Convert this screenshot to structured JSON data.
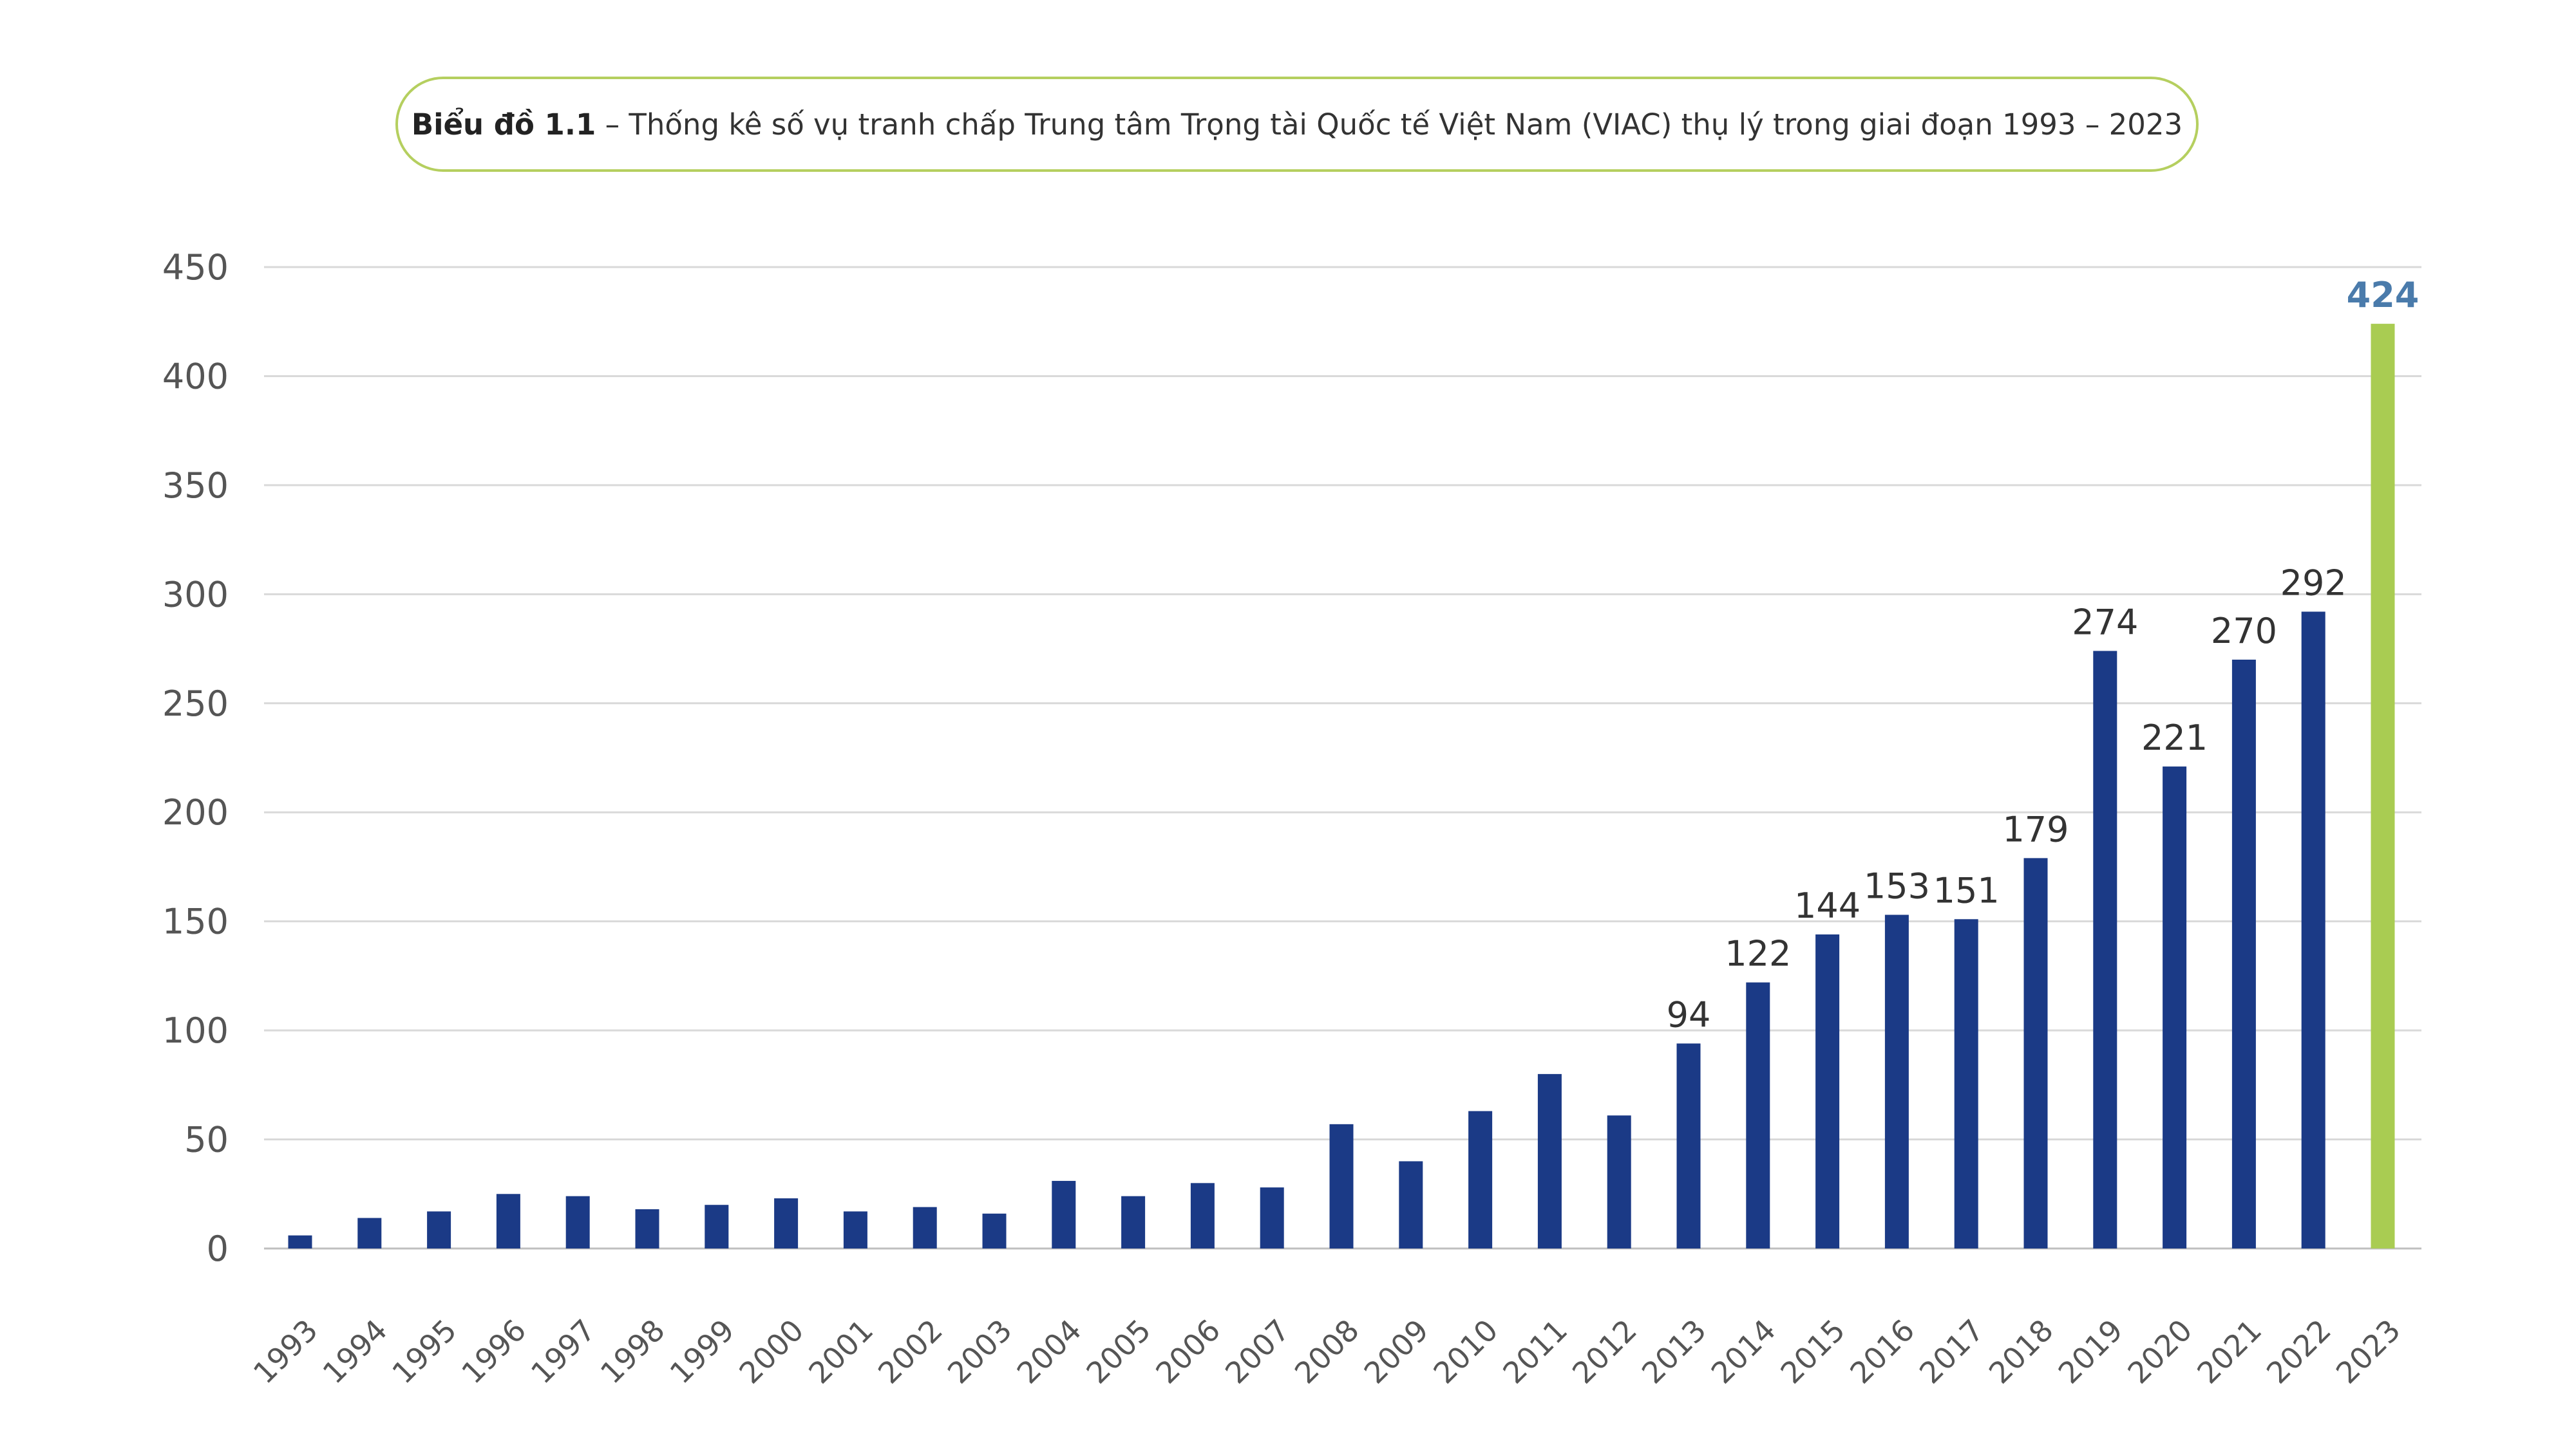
{
  "title": {
    "bold": "Biểu đồ 1.1",
    "rest": " – Thống kê số vụ tranh chấp Trung tâm Trọng tài Quốc tế Việt Nam (VIAC) thụ lý trong giai đoạn 1993 – 2023"
  },
  "chart_data": {
    "type": "bar",
    "categories": [
      "1993",
      "1994",
      "1995",
      "1996",
      "1997",
      "1998",
      "1999",
      "2000",
      "2001",
      "2002",
      "2003",
      "2004",
      "2005",
      "2006",
      "2007",
      "2008",
      "2009",
      "2010",
      "2011",
      "2012",
      "2013",
      "2014",
      "2015",
      "2016",
      "2017",
      "2018",
      "2019",
      "2020",
      "2021",
      "2022",
      "2023"
    ],
    "values": [
      6,
      14,
      17,
      25,
      24,
      18,
      20,
      23,
      17,
      19,
      16,
      31,
      24,
      30,
      28,
      57,
      40,
      63,
      80,
      61,
      94,
      122,
      144,
      153,
      151,
      179,
      274,
      221,
      270,
      292,
      424
    ],
    "data_labels": {
      "2013": "94",
      "2014": "122",
      "2015": "144",
      "2016": "153",
      "2017": "151",
      "2018": "179",
      "2019": "274",
      "2020": "221",
      "2021": "270",
      "2022": "292",
      "2023": "424"
    },
    "highlight_category": "2023",
    "ylim": [
      0,
      450
    ],
    "yticks": [
      0,
      50,
      100,
      150,
      200,
      250,
      300,
      350,
      400,
      450
    ],
    "grid": true,
    "xlabel": "",
    "ylabel": "",
    "colors": {
      "bar": "#1b3a86",
      "highlight_bar": "#a9cc52",
      "highlight_label": "#4a7bab",
      "grid": "#d9d9d9",
      "title_border": "#b5cf5f"
    }
  }
}
